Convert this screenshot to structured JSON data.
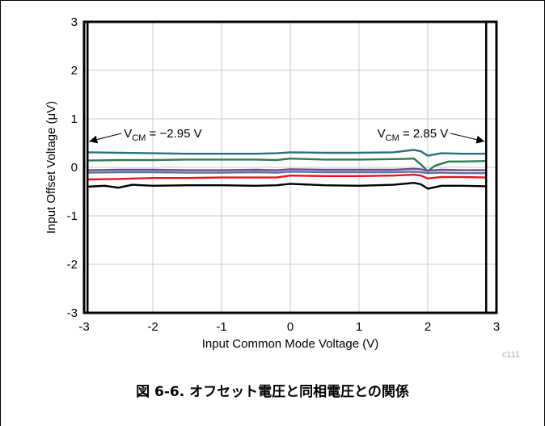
{
  "chart_data": {
    "type": "line",
    "xlabel": "Input Common Mode Voltage (V)",
    "ylabel": "Input Offset Voltage (μV)",
    "xlim": [
      -3,
      3
    ],
    "ylim": [
      -3,
      3
    ],
    "xticks": [
      -3,
      -2,
      -1,
      0,
      1,
      2,
      3
    ],
    "xtick_labels": [
      "-3",
      "-2",
      "-1",
      "0",
      "1",
      "2",
      "3"
    ],
    "yticks": [
      -3,
      -2,
      -1,
      0,
      1,
      2,
      3
    ],
    "ytick_labels": [
      "-3",
      "-2",
      "-1",
      "0",
      "1",
      "2",
      "3"
    ],
    "grid": true,
    "vlines": [
      -2.95,
      2.85
    ],
    "annotations": [
      {
        "prefix": "V",
        "sub": "CM",
        "text": " = −2.95 V",
        "x": -2.95,
        "y": 0.7,
        "side": "left"
      },
      {
        "prefix": "V",
        "sub": "CM",
        "text": " = 2.85 V",
        "x": 2.85,
        "y": 0.7,
        "side": "right"
      }
    ],
    "series": [
      {
        "color": "#2e6f7e",
        "x": [
          -2.95,
          -2.5,
          -2.0,
          -1.5,
          -1.0,
          -0.5,
          -0.2,
          0.0,
          0.5,
          1.0,
          1.5,
          1.8,
          1.9,
          2.0,
          2.2,
          2.5,
          2.85
        ],
        "y": [
          0.31,
          0.3,
          0.29,
          0.28,
          0.28,
          0.28,
          0.29,
          0.31,
          0.3,
          0.3,
          0.31,
          0.36,
          0.33,
          0.24,
          0.29,
          0.28,
          0.28
        ]
      },
      {
        "color": "#2f7b52",
        "x": [
          -2.95,
          -2.5,
          -2.0,
          -1.5,
          -1.0,
          -0.5,
          -0.2,
          0.0,
          0.5,
          1.0,
          1.5,
          1.8,
          1.9,
          2.0,
          2.1,
          2.3,
          2.5,
          2.85
        ],
        "y": [
          0.14,
          0.15,
          0.15,
          0.16,
          0.16,
          0.16,
          0.15,
          0.18,
          0.16,
          0.16,
          0.17,
          0.18,
          0.06,
          -0.08,
          0.03,
          0.12,
          0.12,
          0.13
        ]
      },
      {
        "color": "#6b4d86",
        "x": [
          -2.95,
          -2.5,
          -2.0,
          -1.5,
          -1.0,
          -0.5,
          -0.2,
          0.0,
          0.5,
          1.0,
          1.5,
          1.8,
          1.9,
          2.0,
          2.2,
          2.5,
          2.85
        ],
        "y": [
          -0.06,
          -0.05,
          -0.05,
          -0.06,
          -0.06,
          -0.05,
          -0.06,
          -0.04,
          -0.05,
          -0.05,
          -0.05,
          -0.03,
          -0.04,
          -0.07,
          -0.05,
          -0.06,
          -0.06
        ]
      },
      {
        "color": "#5b6fa8",
        "x": [
          -2.95,
          -2.5,
          -2.0,
          -1.5,
          -1.0,
          -0.5,
          -0.2,
          0.0,
          0.5,
          1.0,
          1.5,
          1.8,
          1.9,
          2.0,
          2.2,
          2.5,
          2.85
        ],
        "y": [
          -0.11,
          -0.1,
          -0.1,
          -0.11,
          -0.11,
          -0.1,
          -0.11,
          -0.09,
          -0.1,
          -0.1,
          -0.1,
          -0.09,
          -0.1,
          -0.12,
          -0.11,
          -0.12,
          -0.12
        ]
      },
      {
        "color": "#e3161d",
        "x": [
          -2.95,
          -2.5,
          -2.0,
          -1.5,
          -1.0,
          -0.5,
          -0.2,
          0.0,
          0.5,
          1.0,
          1.5,
          1.8,
          1.9,
          2.0,
          2.2,
          2.5,
          2.85
        ],
        "y": [
          -0.25,
          -0.24,
          -0.22,
          -0.22,
          -0.21,
          -0.21,
          -0.21,
          -0.17,
          -0.18,
          -0.18,
          -0.17,
          -0.15,
          -0.17,
          -0.23,
          -0.2,
          -0.2,
          -0.21
        ]
      },
      {
        "color": "#000000",
        "x": [
          -2.95,
          -2.7,
          -2.5,
          -2.3,
          -2.0,
          -1.5,
          -1.0,
          -0.5,
          -0.2,
          0.0,
          0.5,
          1.0,
          1.5,
          1.8,
          1.9,
          2.0,
          2.2,
          2.5,
          2.85
        ],
        "y": [
          -0.4,
          -0.38,
          -0.42,
          -0.36,
          -0.38,
          -0.37,
          -0.37,
          -0.38,
          -0.37,
          -0.34,
          -0.37,
          -0.38,
          -0.36,
          -0.32,
          -0.35,
          -0.44,
          -0.38,
          -0.38,
          -0.39
        ]
      }
    ],
    "figure_id": "c111"
  },
  "caption": "図 6-6. オフセット電圧と同相電圧との関係"
}
